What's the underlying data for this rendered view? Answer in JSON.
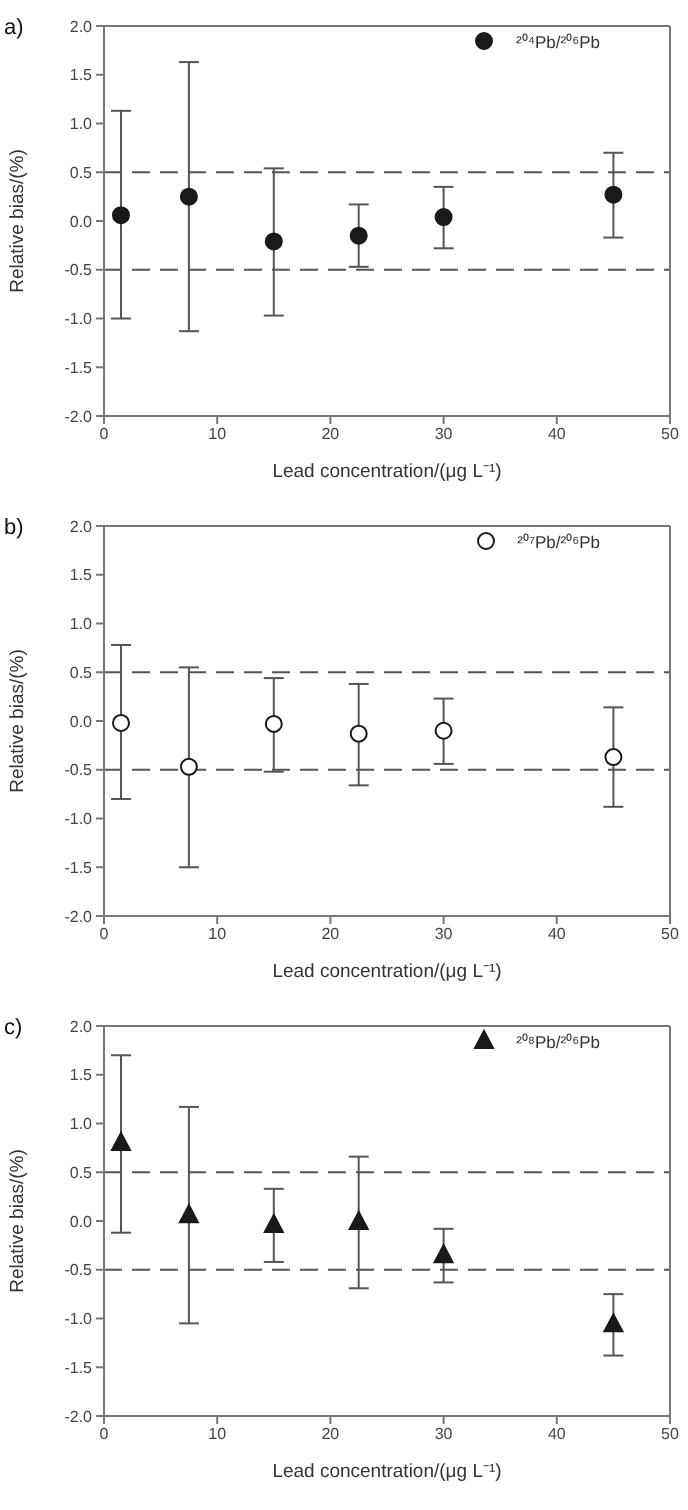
{
  "chart_data": [
    {
      "type": "scatter",
      "title": "a)",
      "xlabel": "Lead concentration/(μg L⁻¹)",
      "ylabel": "Relative bias/(%)",
      "x": [
        1.5,
        7.5,
        15,
        22.5,
        30,
        45
      ],
      "xlim": [
        0,
        50
      ],
      "xticks": [
        0,
        10,
        20,
        30,
        40,
        50
      ],
      "ylim": [
        -2,
        2
      ],
      "yticks": [
        {
          "value": -2,
          "label": "-2.0"
        },
        -1.5,
        {
          "value": -1,
          "label": "-1.0"
        },
        -0.5,
        {
          "value": 0,
          "label": "0.0"
        },
        0.5,
        {
          "value": 1,
          "label": "1.0"
        },
        1.5,
        {
          "value": 2,
          "label": "2.0"
        }
      ],
      "marker": "circle",
      "legend": "top right",
      "series": [
        {
          "name": "²⁰⁴Pb/²⁰⁶Pb",
          "color": "#1a1a1a",
          "values": [
            0.06,
            0.25,
            -0.21,
            -0.15,
            0.04,
            0.27
          ],
          "errors": [
            [
              -1.0,
              1.13
            ],
            [
              -1.13,
              1.63
            ],
            [
              -0.97,
              0.54
            ],
            [
              -0.47,
              0.17
            ],
            [
              -0.28,
              0.35
            ],
            [
              -0.17,
              0.7
            ]
          ]
        }
      ],
      "ref_lines": [
        {
          "axis": "y",
          "value": 0.5,
          "line_style": "dashed",
          "color": "#555555"
        },
        {
          "axis": "y",
          "value": -0.5,
          "line_style": "dashed",
          "color": "#555555"
        }
      ]
    },
    {
      "type": "scatter",
      "title": "b)",
      "xlabel": "Lead concentration/(μg L⁻¹)",
      "ylabel": "Relative bias/(%)",
      "x": [
        1.5,
        7.5,
        15,
        22.5,
        30,
        45
      ],
      "xlim": [
        0,
        50
      ],
      "xticks": [
        0,
        10,
        20,
        30,
        40,
        50
      ],
      "ylim": [
        -2,
        2
      ],
      "yticks": [
        {
          "value": -2,
          "label": "-2.0"
        },
        -1.5,
        {
          "value": -1,
          "label": "-1.0"
        },
        -0.5,
        {
          "value": 0,
          "label": "0.0"
        },
        0.5,
        {
          "value": 1,
          "label": "1.0"
        },
        1.5,
        {
          "value": 2,
          "label": "2.0"
        }
      ],
      "marker": "circle",
      "legend": "top right",
      "series": [
        {
          "name": "²⁰⁷Pb/²⁰⁶Pb",
          "color": "#ffffff",
          "values": [
            -0.02,
            -0.47,
            -0.03,
            -0.13,
            -0.1,
            -0.37
          ],
          "errors": [
            [
              -0.8,
              0.78
            ],
            [
              -1.5,
              0.55
            ],
            [
              -0.52,
              0.44
            ],
            [
              -0.66,
              0.38
            ],
            [
              -0.44,
              0.23
            ],
            [
              -0.88,
              0.14
            ]
          ]
        }
      ],
      "ref_lines": [
        {
          "axis": "y",
          "value": 0.5,
          "line_style": "dashed",
          "color": "#555555"
        },
        {
          "axis": "y",
          "value": -0.5,
          "line_style": "dashed",
          "color": "#555555"
        }
      ]
    },
    {
      "type": "scatter",
      "title": "c)",
      "xlabel": "Lead concentration/(μg L⁻¹)",
      "ylabel": "Relative bias/(%)",
      "x": [
        1.5,
        7.5,
        15,
        22.5,
        30,
        45
      ],
      "xlim": [
        0,
        50
      ],
      "xticks": [
        0,
        10,
        20,
        30,
        40,
        50
      ],
      "ylim": [
        -2,
        2
      ],
      "yticks": [
        {
          "value": -2,
          "label": "-2.0"
        },
        -1.5,
        {
          "value": -1,
          "label": "-1.0"
        },
        -0.5,
        {
          "value": 0,
          "label": "0.0"
        },
        0.5,
        {
          "value": 1,
          "label": "1.0"
        },
        1.5,
        {
          "value": 2,
          "label": "2.0"
        }
      ],
      "marker": "triangle",
      "legend": "top right",
      "series": [
        {
          "name": "²⁰⁸Pb/²⁰⁶Pb",
          "color": "#1a1a1a",
          "values": [
            0.8,
            0.06,
            -0.04,
            -0.01,
            -0.35,
            -1.06
          ],
          "errors": [
            [
              -0.12,
              1.7
            ],
            [
              -1.05,
              1.17
            ],
            [
              -0.42,
              0.33
            ],
            [
              -0.69,
              0.66
            ],
            [
              -0.63,
              -0.08
            ],
            [
              -1.38,
              -0.75
            ]
          ]
        }
      ],
      "ref_lines": [
        {
          "axis": "y",
          "value": 0.5,
          "line_style": "dashed",
          "color": "#555555"
        },
        {
          "axis": "y",
          "value": -0.5,
          "line_style": "dashed",
          "color": "#555555"
        }
      ]
    }
  ]
}
